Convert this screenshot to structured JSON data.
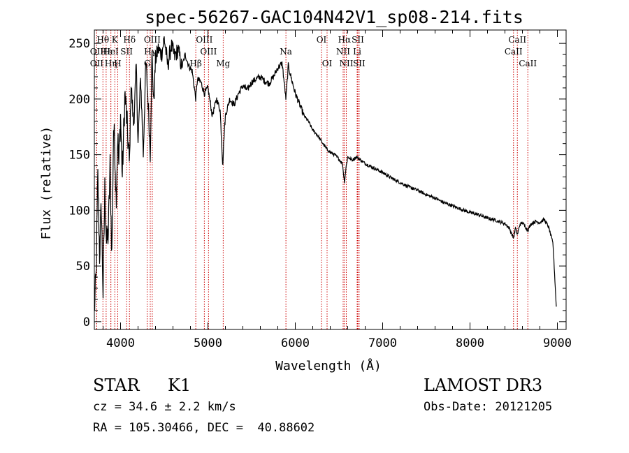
{
  "chart_data": {
    "type": "line",
    "title": "spec-56267-GAC104N42V1_sp08-214.fits",
    "xlabel": "Wavelength (Å)",
    "ylabel": "Flux (relative)",
    "xlim": [
      3700,
      9100
    ],
    "ylim": [
      -7,
      262
    ],
    "xticks": [
      4000,
      5000,
      6000,
      7000,
      8000,
      9000
    ],
    "xtick_labels": [
      "4000",
      "5000",
      "6000",
      "7000",
      "8000",
      "9000"
    ],
    "yticks": [
      0,
      50,
      100,
      150,
      200,
      250
    ],
    "ytick_labels": [
      "0",
      "50",
      "100",
      "150",
      "200",
      "250"
    ],
    "line_color": "#000000",
    "marker_color": "#cc0000",
    "series": [
      {
        "name": "flux",
        "x": [
          3700,
          3720,
          3740,
          3760,
          3780,
          3800,
          3820,
          3840,
          3860,
          3880,
          3900,
          3920,
          3935,
          3950,
          3968,
          3980,
          4000,
          4020,
          4050,
          4080,
          4102,
          4120,
          4150,
          4180,
          4200,
          4230,
          4260,
          4290,
          4320,
          4340,
          4360,
          4380,
          4400,
          4430,
          4470,
          4500,
          4540,
          4580,
          4620,
          4660,
          4700,
          4740,
          4780,
          4820,
          4861,
          4880,
          4920,
          4960,
          5000,
          5050,
          5100,
          5140,
          5170,
          5183,
          5200,
          5250,
          5300,
          5350,
          5400,
          5450,
          5500,
          5550,
          5600,
          5650,
          5700,
          5750,
          5800,
          5850,
          5893,
          5920,
          5950,
          6000,
          6050,
          6100,
          6150,
          6200,
          6250,
          6300,
          6350,
          6400,
          6450,
          6500,
          6540,
          6563,
          6580,
          6600,
          6650,
          6700,
          6800,
          6900,
          7000,
          7100,
          7200,
          7300,
          7400,
          7500,
          7600,
          7700,
          7800,
          7900,
          8000,
          8100,
          8200,
          8300,
          8400,
          8450,
          8498,
          8520,
          8542,
          8570,
          8600,
          8662,
          8700,
          8750,
          8800,
          8850,
          8900,
          8950,
          8990
        ],
        "y": [
          10,
          40,
          130,
          60,
          105,
          25,
          120,
          70,
          80,
          140,
          60,
          175,
          155,
          110,
          170,
          140,
          185,
          130,
          205,
          170,
          140,
          215,
          175,
          230,
          160,
          220,
          150,
          235,
          190,
          150,
          240,
          195,
          235,
          245,
          240,
          255,
          230,
          248,
          238,
          245,
          228,
          240,
          230,
          225,
          200,
          218,
          215,
          205,
          210,
          185,
          200,
          190,
          140,
          165,
          185,
          200,
          195,
          205,
          212,
          208,
          215,
          218,
          220,
          216,
          214,
          220,
          228,
          232,
          200,
          230,
          220,
          205,
          195,
          185,
          180,
          172,
          168,
          162,
          156,
          152,
          150,
          146,
          142,
          125,
          138,
          148,
          145,
          148,
          142,
          138,
          134,
          129,
          125,
          121,
          118,
          114,
          111,
          107,
          104,
          101,
          98,
          96,
          93,
          91,
          88,
          84,
          75,
          84,
          78,
          87,
          89,
          82,
          88,
          90,
          89,
          92,
          85,
          70,
          10
        ]
      }
    ],
    "line_markers": [
      {
        "label": "Hθ",
        "x": 3798,
        "row": 0
      },
      {
        "label": "OII",
        "x": 3727,
        "row": 1
      },
      {
        "label": "OII",
        "x": 3727,
        "row": 2
      },
      {
        "label": "Hε",
        "x": 3835,
        "row": 1
      },
      {
        "label": "Hη",
        "x": 3889,
        "row": 2
      },
      {
        "label": "K",
        "x": 3934,
        "row": 0
      },
      {
        "label": "HeI",
        "x": 3889,
        "row": 1
      },
      {
        "label": "H",
        "x": 3968,
        "row": 2
      },
      {
        "label": "SII",
        "x": 4069,
        "row": 1
      },
      {
        "label": "Hδ",
        "x": 4102,
        "row": 0
      },
      {
        "label": "OIII",
        "x": 4363,
        "row": 0
      },
      {
        "label": "Hγ",
        "x": 4340,
        "row": 1
      },
      {
        "label": "G",
        "x": 4305,
        "row": 2
      },
      {
        "label": "Hβ",
        "x": 4861,
        "row": 2
      },
      {
        "label": "OIII",
        "x": 4959,
        "row": 0
      },
      {
        "label": "OIII",
        "x": 5007,
        "row": 1
      },
      {
        "label": "Mg",
        "x": 5175,
        "row": 2
      },
      {
        "label": "Na",
        "x": 5893,
        "row": 1
      },
      {
        "label": "OI",
        "x": 6300,
        "row": 0
      },
      {
        "label": "OI",
        "x": 6364,
        "row": 2
      },
      {
        "label": "Hα",
        "x": 6563,
        "row": 0
      },
      {
        "label": "NII",
        "x": 6548,
        "row": 1
      },
      {
        "label": "NII",
        "x": 6584,
        "row": 2
      },
      {
        "label": "SII",
        "x": 6716,
        "row": 0
      },
      {
        "label": "Li",
        "x": 6708,
        "row": 1
      },
      {
        "label": "SII",
        "x": 6731,
        "row": 2
      },
      {
        "label": "CaII",
        "x": 8542,
        "row": 0
      },
      {
        "label": "CaII",
        "x": 8498,
        "row": 1
      },
      {
        "label": "CaII",
        "x": 8662,
        "row": 2
      }
    ]
  },
  "info": {
    "object_class": "STAR",
    "subclass": "K1",
    "survey": "LAMOST DR3",
    "redshift_line": "cz = 34.6 ± 2.2 km/s",
    "obs_date": "Obs-Date: 20121205",
    "coords": "RA = 105.30466, DEC =  40.88602"
  }
}
